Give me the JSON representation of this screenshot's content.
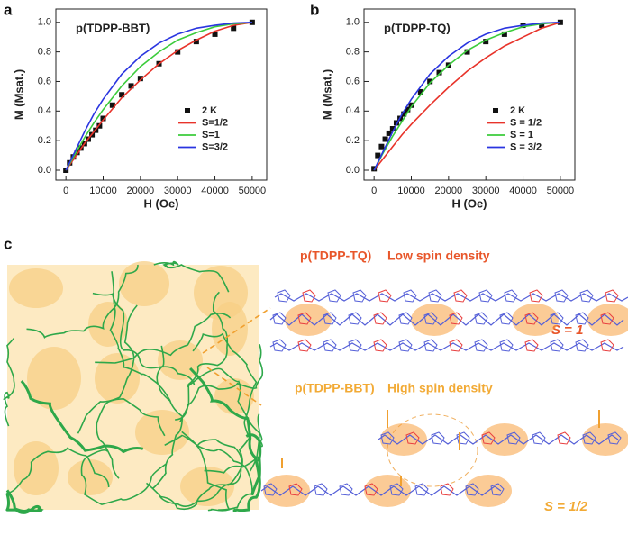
{
  "chart_data": [
    {
      "type": "line",
      "panel": "a",
      "title": "p(TDPP-BBT)",
      "xlabel": "H (Oe)",
      "ylabel": "M (Msat.)",
      "xlim": [
        -2700,
        53900
      ],
      "ylim": [
        -0.067,
        1.09
      ],
      "xticks": [
        0,
        10000,
        20000,
        30000,
        40000,
        50000
      ],
      "yticks": [
        {
          "value": 0,
          "label": "0.0"
        },
        0.2,
        0.4,
        0.6,
        0.8,
        {
          "value": 1,
          "label": "1.0"
        }
      ],
      "legend": "center right",
      "series": [
        {
          "name": "2 K",
          "color": "#111111",
          "marker": "square",
          "line": false,
          "x": [
            0,
            1000,
            2000,
            3000,
            4000,
            5000,
            6000,
            7000,
            8000,
            9000,
            10000,
            12500,
            15000,
            17500,
            20000,
            25000,
            30000,
            35000,
            40000,
            45000,
            50000
          ],
          "values": [
            0,
            0.05,
            0.09,
            0.12,
            0.15,
            0.18,
            0.21,
            0.24,
            0.27,
            0.3,
            0.35,
            0.44,
            0.51,
            0.57,
            0.62,
            0.72,
            0.8,
            0.87,
            0.92,
            0.96,
            1.0
          ]
        },
        {
          "name": "S=1/2",
          "color": "#e8332a",
          "x": [
            0,
            2500,
            5000,
            7500,
            10000,
            15000,
            20000,
            25000,
            30000,
            35000,
            40000,
            45000,
            50000
          ],
          "values": [
            0,
            0.09,
            0.18,
            0.26,
            0.34,
            0.49,
            0.61,
            0.72,
            0.81,
            0.88,
            0.94,
            0.98,
            1.0
          ]
        },
        {
          "name": "S=1",
          "color": "#3ccc3c",
          "x": [
            0,
            2500,
            5000,
            7500,
            10000,
            15000,
            20000,
            25000,
            30000,
            35000,
            40000,
            45000,
            50000
          ],
          "values": [
            0,
            0.11,
            0.22,
            0.32,
            0.41,
            0.57,
            0.7,
            0.8,
            0.88,
            0.93,
            0.97,
            0.99,
            1.0
          ]
        },
        {
          "name": "S=3/2",
          "color": "#2a35e0",
          "x": [
            0,
            2500,
            5000,
            7500,
            10000,
            15000,
            20000,
            25000,
            30000,
            35000,
            40000,
            45000,
            50000
          ],
          "values": [
            0,
            0.13,
            0.26,
            0.38,
            0.48,
            0.65,
            0.77,
            0.86,
            0.92,
            0.96,
            0.98,
            0.995,
            1.0
          ]
        }
      ]
    },
    {
      "type": "line",
      "panel": "b",
      "title": "p(TDPP-TQ)",
      "xlabel": "H (Oe)",
      "ylabel": "M (Msat.)",
      "xlim": [
        -2700,
        53900
      ],
      "ylim": [
        -0.067,
        1.09
      ],
      "xticks": [
        0,
        10000,
        20000,
        30000,
        40000,
        50000
      ],
      "yticks": [
        {
          "value": 0,
          "label": "0.0"
        },
        0.2,
        0.4,
        0.6,
        0.8,
        {
          "value": 1,
          "label": "1.0"
        }
      ],
      "legend": "center right",
      "series": [
        {
          "name": "2 K",
          "color": "#111111",
          "marker": "square",
          "line": false,
          "x": [
            0,
            1000,
            2000,
            3000,
            4000,
            5000,
            6000,
            7000,
            8000,
            9000,
            10000,
            12500,
            15000,
            17500,
            20000,
            25000,
            30000,
            35000,
            40000,
            45000,
            50000
          ],
          "values": [
            0.01,
            0.1,
            0.16,
            0.21,
            0.25,
            0.28,
            0.32,
            0.35,
            0.38,
            0.41,
            0.44,
            0.53,
            0.6,
            0.66,
            0.71,
            0.8,
            0.87,
            0.92,
            0.98,
            0.98,
            1.0
          ]
        },
        {
          "name": "S = 1/2",
          "color": "#e8332a",
          "x": [
            0,
            2500,
            5000,
            7500,
            10000,
            15000,
            20000,
            25000,
            30000,
            35000,
            40000,
            45000,
            50000
          ],
          "values": [
            0,
            0.08,
            0.16,
            0.24,
            0.31,
            0.44,
            0.56,
            0.67,
            0.76,
            0.84,
            0.9,
            0.96,
            1.0
          ]
        },
        {
          "name": "S = 1",
          "color": "#3ccc3c",
          "x": [
            0,
            2500,
            5000,
            7500,
            10000,
            15000,
            20000,
            25000,
            30000,
            35000,
            40000,
            45000,
            50000
          ],
          "values": [
            0,
            0.12,
            0.23,
            0.33,
            0.43,
            0.59,
            0.71,
            0.81,
            0.88,
            0.93,
            0.97,
            0.99,
            1.0
          ]
        },
        {
          "name": "S = 3/2",
          "color": "#2a35e0",
          "x": [
            0,
            2500,
            5000,
            7500,
            10000,
            15000,
            20000,
            25000,
            30000,
            35000,
            40000,
            45000,
            50000
          ],
          "values": [
            0,
            0.13,
            0.26,
            0.38,
            0.48,
            0.65,
            0.77,
            0.86,
            0.92,
            0.96,
            0.98,
            0.995,
            1.0
          ]
        }
      ]
    }
  ],
  "panel_c": {
    "label": "c",
    "top_polymer": "p(TDPP-TQ)",
    "top_density": "Low spin density",
    "top_spin": "S = 1",
    "bottom_polymer": "p(TDPP-BBT)",
    "bottom_density": "High spin density",
    "bottom_spin": "S = 1/2"
  }
}
